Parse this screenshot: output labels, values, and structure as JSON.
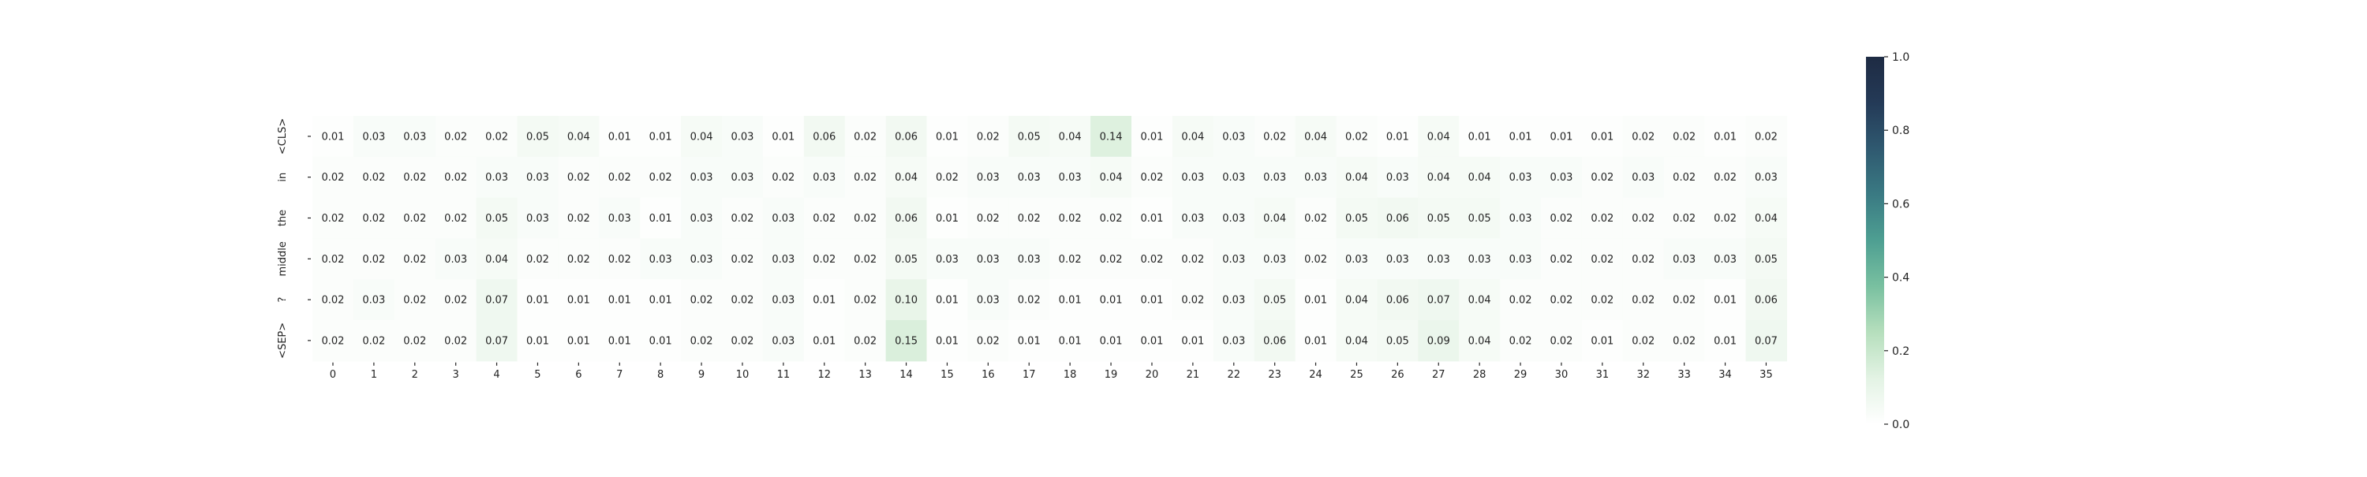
{
  "chart_data": {
    "type": "heatmap",
    "title": "",
    "xlabel": "",
    "ylabel": "",
    "row_labels": [
      "<CLS>",
      "in",
      "the",
      "middle",
      "?",
      "<SEP>"
    ],
    "col_labels": [
      "0",
      "1",
      "2",
      "3",
      "4",
      "5",
      "6",
      "7",
      "8",
      "9",
      "10",
      "11",
      "12",
      "13",
      "14",
      "15",
      "16",
      "17",
      "18",
      "19",
      "20",
      "21",
      "22",
      "23",
      "24",
      "25",
      "26",
      "27",
      "28",
      "29",
      "30",
      "31",
      "32",
      "33",
      "34",
      "35"
    ],
    "values": [
      [
        0.01,
        0.03,
        0.03,
        0.02,
        0.02,
        0.05,
        0.04,
        0.01,
        0.01,
        0.04,
        0.03,
        0.01,
        0.06,
        0.02,
        0.06,
        0.01,
        0.02,
        0.05,
        0.04,
        0.14,
        0.01,
        0.04,
        0.03,
        0.02,
        0.04,
        0.02,
        0.01,
        0.04,
        0.01,
        0.01,
        0.01,
        0.01,
        0.02,
        0.02,
        0.01,
        0.02
      ],
      [
        0.02,
        0.02,
        0.02,
        0.02,
        0.03,
        0.03,
        0.02,
        0.02,
        0.02,
        0.03,
        0.03,
        0.02,
        0.03,
        0.02,
        0.04,
        0.02,
        0.03,
        0.03,
        0.03,
        0.04,
        0.02,
        0.03,
        0.03,
        0.03,
        0.03,
        0.04,
        0.03,
        0.04,
        0.04,
        0.03,
        0.03,
        0.02,
        0.03,
        0.02,
        0.02,
        0.03
      ],
      [
        0.02,
        0.02,
        0.02,
        0.02,
        0.05,
        0.03,
        0.02,
        0.03,
        0.01,
        0.03,
        0.02,
        0.03,
        0.02,
        0.02,
        0.06,
        0.01,
        0.02,
        0.02,
        0.02,
        0.02,
        0.01,
        0.03,
        0.03,
        0.04,
        0.02,
        0.05,
        0.06,
        0.05,
        0.05,
        0.03,
        0.02,
        0.02,
        0.02,
        0.02,
        0.02,
        0.04
      ],
      [
        0.02,
        0.02,
        0.02,
        0.03,
        0.04,
        0.02,
        0.02,
        0.02,
        0.03,
        0.03,
        0.02,
        0.03,
        0.02,
        0.02,
        0.05,
        0.03,
        0.03,
        0.03,
        0.02,
        0.02,
        0.02,
        0.02,
        0.03,
        0.03,
        0.02,
        0.03,
        0.03,
        0.03,
        0.03,
        0.03,
        0.02,
        0.02,
        0.02,
        0.03,
        0.03,
        0.05
      ],
      [
        0.02,
        0.03,
        0.02,
        0.02,
        0.07,
        0.01,
        0.01,
        0.01,
        0.01,
        0.02,
        0.02,
        0.03,
        0.01,
        0.02,
        0.1,
        0.01,
        0.03,
        0.02,
        0.01,
        0.01,
        0.01,
        0.02,
        0.03,
        0.05,
        0.01,
        0.04,
        0.06,
        0.07,
        0.04,
        0.02,
        0.02,
        0.02,
        0.02,
        0.02,
        0.01,
        0.06
      ],
      [
        0.02,
        0.02,
        0.02,
        0.02,
        0.07,
        0.01,
        0.01,
        0.01,
        0.01,
        0.02,
        0.02,
        0.03,
        0.01,
        0.02,
        0.15,
        0.01,
        0.02,
        0.01,
        0.01,
        0.01,
        0.01,
        0.01,
        0.03,
        0.06,
        0.01,
        0.04,
        0.05,
        0.09,
        0.04,
        0.02,
        0.02,
        0.01,
        0.02,
        0.02,
        0.01,
        0.07
      ]
    ],
    "value_range": [
      0.0,
      1.0
    ],
    "grid": false,
    "legend": "colorbar-right",
    "colorbar_ticks": [
      "0.0",
      "0.2",
      "0.4",
      "0.6",
      "0.8",
      "1.0"
    ],
    "colorbar_tick_values": [
      0.0,
      0.2,
      0.4,
      0.6,
      0.8,
      1.0
    ],
    "colormap_stops": [
      "#ffffff",
      "#e3f3e4",
      "#b6dfbd",
      "#79c0a0",
      "#4e9f92",
      "#3a7a83",
      "#2f5970",
      "#243a57",
      "#1e2b43"
    ]
  }
}
